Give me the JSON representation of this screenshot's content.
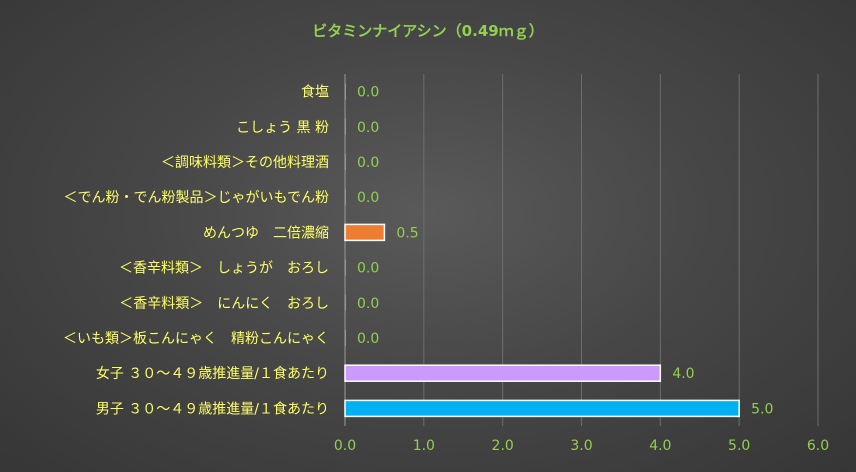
{
  "chart_data": {
    "type": "bar",
    "orientation": "horizontal",
    "title": "ビタミンナイアシン（0.49ｍｇ）",
    "categories": [
      "食塩",
      "こしょう 黒 粉",
      "＜調味料類＞その他料理酒",
      "＜でん粉・でん粉製品＞じゃがいもでん粉",
      "めんつゆ　二倍濃縮",
      "＜香辛料類＞　しょうが　おろし",
      "＜香辛料類＞　にんにく　おろし",
      "＜いも類＞板こんにゃく　精粉こんにゃく",
      "女子 ３０～４９歳推進量/１食あたり",
      "男子 ３０～４９歳推進量/１食あたり"
    ],
    "values": [
      0.0,
      0.0,
      0.0,
      0.0,
      0.5,
      0.0,
      0.0,
      0.0,
      4.0,
      5.0
    ],
    "data_labels": [
      "0.0",
      "0.0",
      "0.0",
      "0.0",
      "0.5",
      "0.0",
      "0.0",
      "0.0",
      "4.0",
      "5.0"
    ],
    "bar_colors": [
      "#ed7d31",
      "#ed7d31",
      "#ed7d31",
      "#ed7d31",
      "#ed7d31",
      "#ed7d31",
      "#ed7d31",
      "#ed7d31",
      "#cc99ff",
      "#00b0f0"
    ],
    "xlim": [
      0,
      6
    ],
    "xticks": [
      "0.0",
      "1.0",
      "2.0",
      "3.0",
      "4.0",
      "5.0",
      "6.0"
    ],
    "grid": true,
    "legend": "none",
    "colors": {
      "title": "#92d050",
      "category_labels": "#ffff66",
      "tick_labels": "#92d050",
      "data_labels": "#92d050"
    }
  }
}
